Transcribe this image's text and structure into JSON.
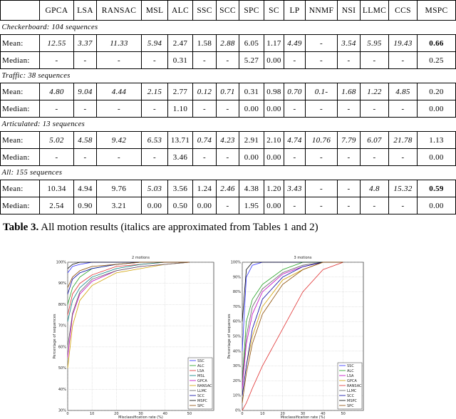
{
  "table": {
    "header": [
      "GPCA",
      "LSA",
      "RANSAC",
      "MSL",
      "ALC",
      "SSC",
      "SCC",
      "SPC",
      "SC",
      "LP",
      "NNMF",
      "NSI",
      "LLMC",
      "CCS",
      "MSPC"
    ],
    "sections": [
      {
        "title": "Checkerboard: 104 sequences",
        "rows": [
          {
            "label": "Mean:",
            "cells": [
              "12.55",
              "3.37",
              "11.33",
              "5.94",
              "2.47",
              "1.58",
              "2.88",
              "6.05",
              "1.17",
              "4.49",
              "-",
              "3.54",
              "5.95",
              "19.43",
              "0.66"
            ],
            "italic": [
              0,
              1,
              2,
              3,
              6,
              9,
              11,
              12,
              13
            ],
            "bold": [
              14
            ]
          },
          {
            "label": "Median:",
            "cells": [
              "-",
              "-",
              "-",
              "-",
              "0.31",
              "-",
              "-",
              "5.27",
              "0.00",
              "-",
              "-",
              "-",
              "-",
              "-",
              "0.25"
            ]
          }
        ]
      },
      {
        "title": "Traffic: 38 sequences",
        "rows": [
          {
            "label": "Mean:",
            "cells": [
              "4.80",
              "9.04",
              "4.44",
              "2.15",
              "2.77",
              "0.12",
              "0.71",
              "0.31",
              "0.98",
              "0.70",
              "0.1-",
              "1.68",
              "1.22",
              "4.85",
              "0.20"
            ],
            "italic": [
              0,
              1,
              2,
              3,
              5,
              6,
              9,
              10,
              11,
              12,
              13
            ]
          },
          {
            "label": "Median:",
            "cells": [
              "-",
              "-",
              "-",
              "-",
              "1.10",
              "-",
              "-",
              "0.00",
              "0.00",
              "-",
              "-",
              "-",
              "-",
              "-",
              "0.00"
            ]
          }
        ]
      },
      {
        "title": "Articulated: 13 sequences",
        "rows": [
          {
            "label": "Mean:",
            "cells": [
              "5.02",
              "4.58",
              "9.42",
              "6.53",
              "13.71",
              "0.74",
              "4.23",
              "2.91",
              "2.10",
              "4.74",
              "10.76",
              "7.79",
              "6.07",
              "21.78",
              "1.13"
            ],
            "italic": [
              0,
              1,
              2,
              3,
              5,
              6,
              9,
              10,
              11,
              12,
              13
            ]
          },
          {
            "label": "Median:",
            "cells": [
              "-",
              "-",
              "-",
              "-",
              "3.46",
              "-",
              "-",
              "0.00",
              "0.00",
              "-",
              "-",
              "-",
              "-",
              "-",
              "0.00"
            ]
          }
        ]
      },
      {
        "title": "All: 155 sequences",
        "rows": [
          {
            "label": "Mean:",
            "cells": [
              "10.34",
              "4.94",
              "9.76",
              "5.03",
              "3.56",
              "1.24",
              "2.46",
              "4.38",
              "1.20",
              "3.43",
              "-",
              "-",
              "4.8",
              "15.32",
              "0.59"
            ],
            "italic": [
              3,
              6,
              9,
              12,
              13
            ],
            "bold": [
              14
            ]
          },
          {
            "label": "Median:",
            "cells": [
              "2.54",
              "0.90",
              "3.21",
              "0.00",
              "0.50",
              "0.00",
              "-",
              "1.95",
              "0.00",
              "-",
              "-",
              "-",
              "-",
              "-",
              "0.00"
            ]
          }
        ]
      }
    ]
  },
  "caption": {
    "label": "Table 3.",
    "text": "All motion results (italics are approximated from Tables 1 and 2)"
  },
  "chart_data": [
    {
      "type": "line",
      "title": "2 motions",
      "xlabel": "Misclassification rate (%)",
      "ylabel": "Percentage of sequences",
      "x": [
        0,
        2,
        5,
        10,
        20,
        30,
        40,
        50
      ],
      "xlim": [
        0,
        60
      ],
      "xticks": [
        0,
        10,
        20,
        30,
        40,
        50
      ],
      "ylim": [
        30,
        100
      ],
      "yticks": [
        {
          "value": 30,
          "label": "30%"
        },
        {
          "value": 40,
          "label": "40%"
        },
        {
          "value": 50,
          "label": "50%"
        },
        {
          "value": 60,
          "label": "60%"
        },
        {
          "value": 70,
          "label": "70%"
        },
        {
          "value": 80,
          "label": "80%"
        },
        {
          "value": 90,
          "label": "90%"
        },
        {
          "value": 100,
          "label": "100%"
        }
      ],
      "grid": true,
      "series": [
        {
          "name": "SSC",
          "color": "#3030ff",
          "values": [
            95,
            98,
            99,
            100,
            100,
            100,
            100,
            100
          ]
        },
        {
          "name": "ALC",
          "color": "#20a020",
          "values": [
            80,
            88,
            93,
            97,
            99,
            100,
            100,
            100
          ]
        },
        {
          "name": "LSA",
          "color": "#e03030",
          "values": [
            75,
            85,
            90,
            94,
            98,
            99,
            100,
            100
          ]
        },
        {
          "name": "MSL",
          "color": "#008080",
          "values": [
            72,
            82,
            88,
            93,
            97,
            99,
            100,
            100
          ]
        },
        {
          "name": "GPCA",
          "color": "#c000c0",
          "values": [
            55,
            75,
            85,
            91,
            96,
            98,
            99,
            100
          ]
        },
        {
          "name": "RANSAC",
          "color": "#d0a000",
          "values": [
            50,
            70,
            82,
            89,
            95,
            97,
            99,
            100
          ]
        },
        {
          "name": "LLMC",
          "color": "#606060",
          "values": [
            60,
            76,
            86,
            92,
            96,
            98,
            99,
            100
          ]
        },
        {
          "name": "SCC",
          "color": "#0000a0",
          "values": [
            85,
            92,
            95,
            97,
            99,
            100,
            100,
            100
          ]
        },
        {
          "name": "MSPC",
          "color": "#000000",
          "values": [
            97,
            99,
            100,
            100,
            100,
            100,
            100,
            100
          ]
        },
        {
          "name": "SPC",
          "color": "#8a4a00",
          "values": [
            88,
            93,
            96,
            98,
            99,
            100,
            100,
            100
          ]
        }
      ]
    },
    {
      "type": "line",
      "title": "3 motions",
      "xlabel": "Misclassification rate (%)",
      "ylabel": "Percentage of sequences",
      "x": [
        0,
        2,
        5,
        10,
        20,
        30,
        40,
        50
      ],
      "xlim": [
        0,
        60
      ],
      "xticks": [
        0,
        10,
        20,
        30,
        40,
        50
      ],
      "ylim": [
        0,
        100
      ],
      "yticks": [
        {
          "value": 0,
          "label": "0%"
        },
        {
          "value": 10,
          "label": "10%"
        },
        {
          "value": 20,
          "label": "20%"
        },
        {
          "value": 30,
          "label": "30%"
        },
        {
          "value": 40,
          "label": "40%"
        },
        {
          "value": 50,
          "label": "50%"
        },
        {
          "value": 60,
          "label": "60%"
        },
        {
          "value": 70,
          "label": "70%"
        },
        {
          "value": 80,
          "label": "80%"
        },
        {
          "value": 90,
          "label": "90%"
        },
        {
          "value": 100,
          "label": "100%"
        }
      ],
      "grid": true,
      "series": [
        {
          "name": "SSC",
          "color": "#3030ff",
          "values": [
            40,
            90,
            98,
            100,
            100,
            100,
            100,
            100
          ]
        },
        {
          "name": "ALC",
          "color": "#20a020",
          "values": [
            20,
            60,
            75,
            85,
            95,
            100,
            100,
            100
          ]
        },
        {
          "name": "LSA",
          "color": "#c000c0",
          "values": [
            15,
            45,
            65,
            80,
            92,
            97,
            100,
            100
          ]
        },
        {
          "name": "GPCA",
          "color": "#d0a000",
          "values": [
            10,
            30,
            50,
            70,
            88,
            95,
            100,
            100
          ]
        },
        {
          "name": "RANSAC",
          "color": "#e03030",
          "values": [
            0,
            5,
            15,
            30,
            55,
            80,
            95,
            100
          ]
        },
        {
          "name": "LLMC",
          "color": "#606060",
          "values": [
            20,
            50,
            70,
            82,
            93,
            98,
            100,
            100
          ]
        },
        {
          "name": "SCC",
          "color": "#0000a0",
          "values": [
            10,
            30,
            55,
            75,
            90,
            97,
            100,
            100
          ]
        },
        {
          "name": "MSPC",
          "color": "#000000",
          "values": [
            60,
            95,
            100,
            100,
            100,
            100,
            100,
            100
          ]
        },
        {
          "name": "SPC",
          "color": "#8a4a00",
          "values": [
            5,
            25,
            45,
            65,
            85,
            95,
            100,
            100
          ]
        }
      ]
    }
  ]
}
